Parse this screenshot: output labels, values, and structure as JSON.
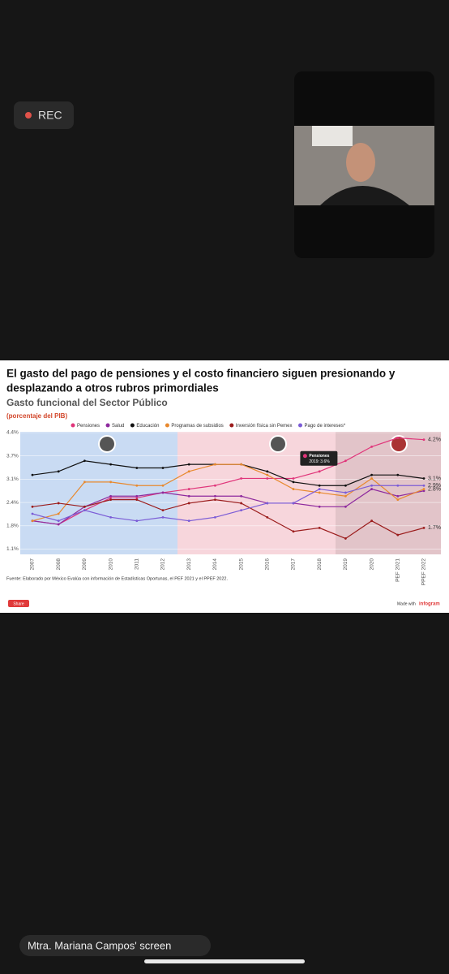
{
  "recording": {
    "label": "REC"
  },
  "chart_data": {
    "type": "line",
    "title": "El gasto del pago de pensiones y el costo financiero siguen presionando y desplazando a otros rubros primordiales",
    "subtitle": "Gasto funcional del Sector Público",
    "unit_note": "(porcentaje del PIB)",
    "categories": [
      "2007",
      "2008",
      "2009",
      "2010",
      "2011",
      "2012",
      "2013",
      "2014",
      "2015",
      "2016",
      "2017",
      "2018",
      "2019",
      "2020",
      "PEF 2021",
      "PPEF 2022"
    ],
    "series": [
      {
        "name": "Pensiones",
        "color": "#e0357a",
        "values": [
          1.9,
          1.8,
          2.2,
          2.55,
          2.55,
          2.7,
          2.8,
          2.9,
          3.1,
          3.1,
          3.1,
          3.3,
          3.6,
          4.0,
          4.25,
          4.2
        ],
        "end_label": "4.2%"
      },
      {
        "name": "Salud",
        "color": "#8e2a9e",
        "values": [
          1.9,
          1.8,
          2.3,
          2.6,
          2.6,
          2.7,
          2.6,
          2.6,
          2.6,
          2.4,
          2.4,
          2.3,
          2.3,
          2.8,
          2.6,
          2.75
        ]
      },
      {
        "name": "Educación",
        "color": "#111111",
        "values": [
          3.2,
          3.3,
          3.6,
          3.5,
          3.4,
          3.4,
          3.5,
          3.5,
          3.5,
          3.3,
          3.0,
          2.9,
          2.9,
          3.2,
          3.2,
          3.1
        ],
        "end_label": "3.1%"
      },
      {
        "name": "Programas de subsidios",
        "color": "#e8892e",
        "values": [
          1.9,
          2.1,
          3.0,
          3.0,
          2.9,
          2.9,
          3.3,
          3.5,
          3.5,
          3.2,
          2.8,
          2.7,
          2.6,
          3.1,
          2.5,
          2.8
        ],
        "end_label": "2.8%"
      },
      {
        "name": "Inversión física sin Pemex",
        "color": "#9b1c1c",
        "values": [
          2.3,
          2.4,
          2.3,
          2.5,
          2.5,
          2.2,
          2.4,
          2.5,
          2.4,
          2.0,
          1.6,
          1.7,
          1.4,
          1.9,
          1.5,
          1.7
        ],
        "end_label": "1.7%"
      },
      {
        "name": "Pago de intereses*",
        "color": "#7b5cd6",
        "values": [
          2.1,
          1.9,
          2.2,
          2.0,
          1.9,
          2.0,
          1.9,
          2.0,
          2.2,
          2.4,
          2.4,
          2.8,
          2.7,
          2.9,
          2.9,
          2.9
        ],
        "end_label": "2.9%"
      }
    ],
    "ylim": [
      0.95,
      4.4
    ],
    "yticks": [
      {
        "value": 1.1,
        "label": "1.1%"
      },
      {
        "value": 1.76,
        "label": "1.8%"
      },
      {
        "value": 2.42,
        "label": "2.4%"
      },
      {
        "value": 3.08,
        "label": "3.1%"
      },
      {
        "value": 3.74,
        "label": "3.7%"
      },
      {
        "value": 4.4,
        "label": "4.4%"
      }
    ],
    "grid": true,
    "tooltip": {
      "title": "Pensiones",
      "text": "2019: 3.6%"
    },
    "source": "Fuente: Elaborado por México Evalúa con información de Estadísticas Oportunas, el PEF 2021 y el PPEF 2022."
  },
  "screen_footer": {
    "share": "Share",
    "made_with": "Made with",
    "brand": "infogram"
  },
  "screen_share_label": "Mtra. Mariana Campos' screen"
}
